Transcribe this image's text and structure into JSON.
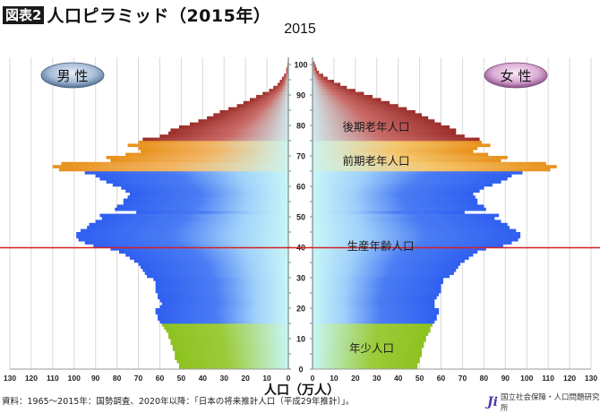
{
  "header": {
    "badge": "図表2",
    "title": "人口ピラミッド（2015年）"
  },
  "chart_data": {
    "type": "bar",
    "subtype": "population-pyramid",
    "title": "2015",
    "xlabel": "人口（万人）",
    "ylabel": "",
    "xlim": [
      0,
      130
    ],
    "ylim": [
      0,
      100
    ],
    "x_ticks": [
      0,
      10,
      20,
      30,
      40,
      50,
      60,
      70,
      80,
      90,
      100,
      110,
      120,
      130
    ],
    "y_ticks": [
      0,
      10,
      20,
      30,
      40,
      50,
      60,
      70,
      80,
      90,
      100
    ],
    "legend": [
      "男性",
      "女性"
    ],
    "reference_line": {
      "age": 40,
      "color": "#d42020"
    },
    "age_groups": [
      {
        "label": "年少人口",
        "age_from": 0,
        "age_to": 14,
        "color": "#8dc21f"
      },
      {
        "label": "生産年齢人口",
        "age_from": 15,
        "age_to": 64,
        "color": "#2f5ff0"
      },
      {
        "label": "前期老年人口",
        "age_from": 65,
        "age_to": 74,
        "color": "#e8901a"
      },
      {
        "label": "後期老年人口",
        "age_from": 75,
        "age_to": 100,
        "color": "#9b2e2a"
      }
    ],
    "ages": [
      0,
      1,
      2,
      3,
      4,
      5,
      6,
      7,
      8,
      9,
      10,
      11,
      12,
      13,
      14,
      15,
      16,
      17,
      18,
      19,
      20,
      21,
      22,
      23,
      24,
      25,
      26,
      27,
      28,
      29,
      30,
      31,
      32,
      33,
      34,
      35,
      36,
      37,
      38,
      39,
      40,
      41,
      42,
      43,
      44,
      45,
      46,
      47,
      48,
      49,
      50,
      51,
      52,
      53,
      54,
      55,
      56,
      57,
      58,
      59,
      60,
      61,
      62,
      63,
      64,
      65,
      66,
      67,
      68,
      69,
      70,
      71,
      72,
      73,
      74,
      75,
      76,
      77,
      78,
      79,
      80,
      81,
      82,
      83,
      84,
      85,
      86,
      87,
      88,
      89,
      90,
      91,
      92,
      93,
      94,
      95,
      96,
      97,
      98,
      99,
      100
    ],
    "series": [
      {
        "name": "男性",
        "values": [
          51,
          51,
          52,
          53,
          53,
          53,
          54,
          54,
          55,
          55,
          56,
          56,
          57,
          58,
          59,
          60,
          61,
          61,
          62,
          62,
          60,
          59,
          60,
          61,
          61,
          62,
          62,
          62,
          62,
          63,
          66,
          67,
          68,
          69,
          70,
          72,
          74,
          76,
          79,
          83,
          91,
          95,
          98,
          99,
          99,
          97,
          94,
          93,
          90,
          87,
          88,
          71,
          81,
          80,
          77,
          77,
          75,
          74,
          76,
          78,
          82,
          85,
          88,
          90,
          95,
          107,
          110,
          106,
          83,
          85,
          76,
          69,
          70,
          75,
          70,
          68,
          60,
          56,
          55,
          51,
          46,
          42,
          38,
          35,
          32,
          28,
          24,
          21,
          18,
          15,
          12,
          9,
          7,
          5,
          4,
          3,
          2,
          1,
          1,
          0.5,
          0.3
        ]
      },
      {
        "name": "女性",
        "values": [
          49,
          49,
          50,
          50,
          51,
          51,
          51,
          52,
          52,
          53,
          53,
          54,
          55,
          55,
          56,
          57,
          58,
          58,
          59,
          59,
          57,
          57,
          57,
          58,
          59,
          60,
          60,
          60,
          61,
          61,
          64,
          66,
          67,
          68,
          69,
          71,
          73,
          75,
          77,
          81,
          89,
          93,
          96,
          97,
          97,
          95,
          92,
          91,
          88,
          85,
          87,
          71,
          81,
          80,
          77,
          77,
          76,
          75,
          78,
          80,
          84,
          88,
          91,
          93,
          98,
          111,
          114,
          109,
          88,
          91,
          82,
          75,
          77,
          83,
          79,
          78,
          71,
          67,
          67,
          64,
          60,
          57,
          54,
          51,
          48,
          44,
          40,
          36,
          32,
          28,
          24,
          20,
          16,
          13,
          10,
          7,
          5,
          3,
          2,
          1.5,
          1
        ]
      }
    ]
  },
  "labels": {
    "male": "男 性",
    "female": "女 性",
    "group_late_elderly": "後期老年人口",
    "group_early_elderly": "前期老年人口",
    "group_working": "生産年齢人口",
    "group_youth": "年少人口",
    "x_unit": "人口（万人）"
  },
  "footer": {
    "source": "資料：1965〜2015年：国勢調査、2020年以降：「日本の将来推計人口（平成29年推計）」。",
    "org": "国立社会保障・人口問題研究所"
  }
}
